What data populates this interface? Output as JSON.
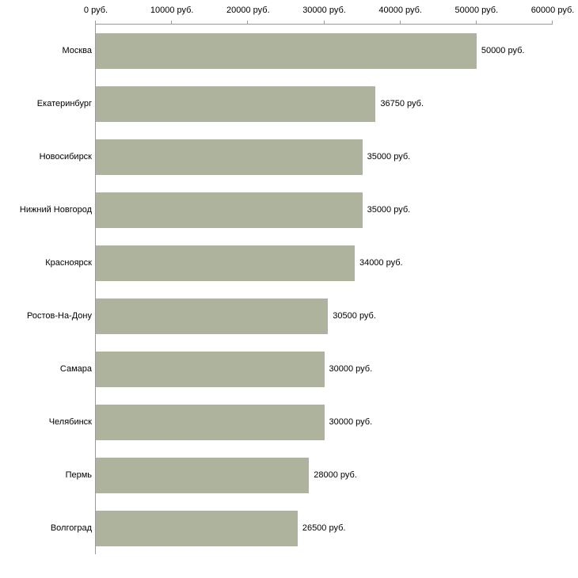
{
  "chart_data": {
    "type": "bar",
    "orientation": "horizontal",
    "title": "",
    "xlabel": "",
    "ylabel": "",
    "xlim": [
      0,
      60000
    ],
    "grid": false,
    "legend": "none",
    "bar_color": "#adb39c",
    "axis_color": "#9a9a9a",
    "x_ticks": [
      0,
      10000,
      20000,
      30000,
      40000,
      50000,
      60000
    ],
    "x_tick_labels": [
      "0 руб.",
      "10000 руб.",
      "20000 руб.",
      "30000 руб.",
      "40000 руб.",
      "50000 руб.",
      "60000 руб."
    ],
    "categories": [
      "Москва",
      "Екатеринбург",
      "Новосибирск",
      "Нижний Новгород",
      "Красноярск",
      "Ростов-На-Дону",
      "Самара",
      "Челябинск",
      "Пермь",
      "Волгоград"
    ],
    "values": [
      50000,
      36750,
      35000,
      35000,
      34000,
      30500,
      30000,
      30000,
      28000,
      26500
    ],
    "value_labels": [
      "50000 руб.",
      "36750 руб.",
      "35000 руб.",
      "35000 руб.",
      "34000 руб.",
      "30500 руб.",
      "30000 руб.",
      "30000 руб.",
      "28000 руб.",
      "26500 руб."
    ]
  }
}
